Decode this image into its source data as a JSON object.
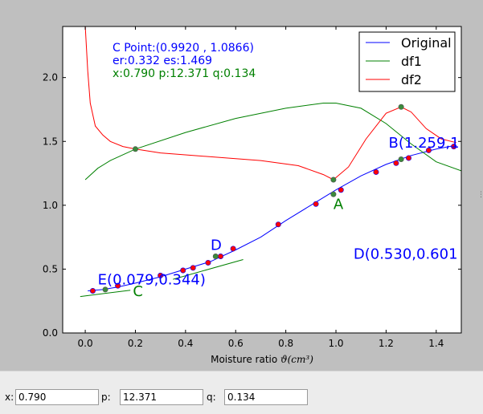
{
  "chart_data": {
    "type": "line",
    "xlabel": "Moisture ratio",
    "xlabel_math": "ϑ(cm³)",
    "xlim": [
      -0.09,
      1.5
    ],
    "ylim": [
      0.0,
      2.4
    ],
    "x_ticks": [
      "0.0",
      "0.2",
      "0.4",
      "0.6",
      "0.8",
      "1.0",
      "1.2",
      "1.4"
    ],
    "y_ticks": [
      "0.0",
      "0.5",
      "1.0",
      "1.5",
      "2.0"
    ],
    "legend_position": "top-right",
    "legend": [
      "Original",
      "df1",
      "df2"
    ],
    "series_colors": {
      "Original": "#0000ff",
      "df1": "#008000",
      "df2": "#ff0000"
    },
    "series": [
      {
        "name": "Original",
        "x": [
          0.01,
          0.07,
          0.13,
          0.2,
          0.3,
          0.4,
          0.5,
          0.6,
          0.7,
          0.8,
          0.9,
          1.0,
          1.1,
          1.2,
          1.3,
          1.4,
          1.48
        ],
        "y": [
          0.33,
          0.34,
          0.36,
          0.39,
          0.44,
          0.5,
          0.56,
          0.65,
          0.75,
          0.88,
          1.0,
          1.12,
          1.23,
          1.32,
          1.39,
          1.44,
          1.47
        ]
      },
      {
        "name": "df1",
        "x": [
          0.0,
          0.05,
          0.1,
          0.2,
          0.4,
          0.6,
          0.8,
          0.95,
          1.0,
          1.1,
          1.2,
          1.3,
          1.4,
          1.5
        ],
        "y": [
          1.2,
          1.29,
          1.35,
          1.44,
          1.57,
          1.68,
          1.76,
          1.8,
          1.8,
          1.76,
          1.64,
          1.48,
          1.34,
          1.27
        ]
      },
      {
        "name": "df2",
        "x": [
          0.0,
          0.01,
          0.02,
          0.04,
          0.07,
          0.1,
          0.15,
          0.2,
          0.3,
          0.5,
          0.7,
          0.85,
          0.95,
          0.99,
          1.05,
          1.12,
          1.2,
          1.26,
          1.3,
          1.36,
          1.42,
          1.48
        ],
        "y": [
          2.4,
          2.05,
          1.8,
          1.62,
          1.55,
          1.5,
          1.46,
          1.44,
          1.41,
          1.38,
          1.35,
          1.31,
          1.24,
          1.2,
          1.3,
          1.52,
          1.72,
          1.77,
          1.73,
          1.6,
          1.52,
          1.49
        ]
      },
      {
        "name": "tangent-C",
        "x": [
          -0.02,
          0.18
        ],
        "y": [
          0.285,
          0.335
        ]
      },
      {
        "name": "tangent-D",
        "x": [
          0.35,
          0.63
        ],
        "y": [
          0.42,
          0.575
        ]
      }
    ],
    "red_points": {
      "x": [
        0.03,
        0.13,
        0.3,
        0.39,
        0.43,
        0.49,
        0.54,
        0.59,
        0.77,
        0.92,
        1.02,
        1.16,
        1.24,
        1.29,
        1.37,
        1.47
      ],
      "y": [
        0.33,
        0.37,
        0.45,
        0.49,
        0.51,
        0.55,
        0.6,
        0.66,
        0.85,
        1.01,
        1.12,
        1.26,
        1.33,
        1.37,
        1.43,
        1.46
      ]
    },
    "green_points": {
      "x": [
        0.08,
        0.2,
        0.52,
        0.99,
        0.99,
        1.26,
        1.26
      ],
      "y": [
        0.34,
        1.44,
        0.6,
        1.2,
        1.086,
        1.77,
        1.36
      ]
    },
    "text_annotations": {
      "c_point": "C Point:(0.9920 , 1.0866)",
      "er_es": "er:0.332 es:1.469",
      "xpq": "x:0.790 p:12.371 q:0.134"
    },
    "point_labels": [
      {
        "text": "B(1.259,1",
        "x": 1.21,
        "y": 1.45,
        "color": "#0000ff"
      },
      {
        "text": "A",
        "x": 0.99,
        "y": 0.97,
        "color": "#008000"
      },
      {
        "text": "D(0.530,0.601",
        "x": 1.07,
        "y": 0.58,
        "color": "#0000ff"
      },
      {
        "text": "D",
        "x": 0.5,
        "y": 0.65,
        "color": "#0000ff"
      },
      {
        "text": "E(0.079,0.344)",
        "x": 0.05,
        "y": 0.38,
        "color": "#0000ff"
      },
      {
        "text": "C",
        "x": 0.19,
        "y": 0.29,
        "color": "#008000"
      }
    ]
  },
  "inputs": {
    "x_label": "x:",
    "x_value": "0.790",
    "p_label": "p:",
    "p_value": "12.371",
    "q_label": "q:",
    "q_value": "0.134"
  }
}
